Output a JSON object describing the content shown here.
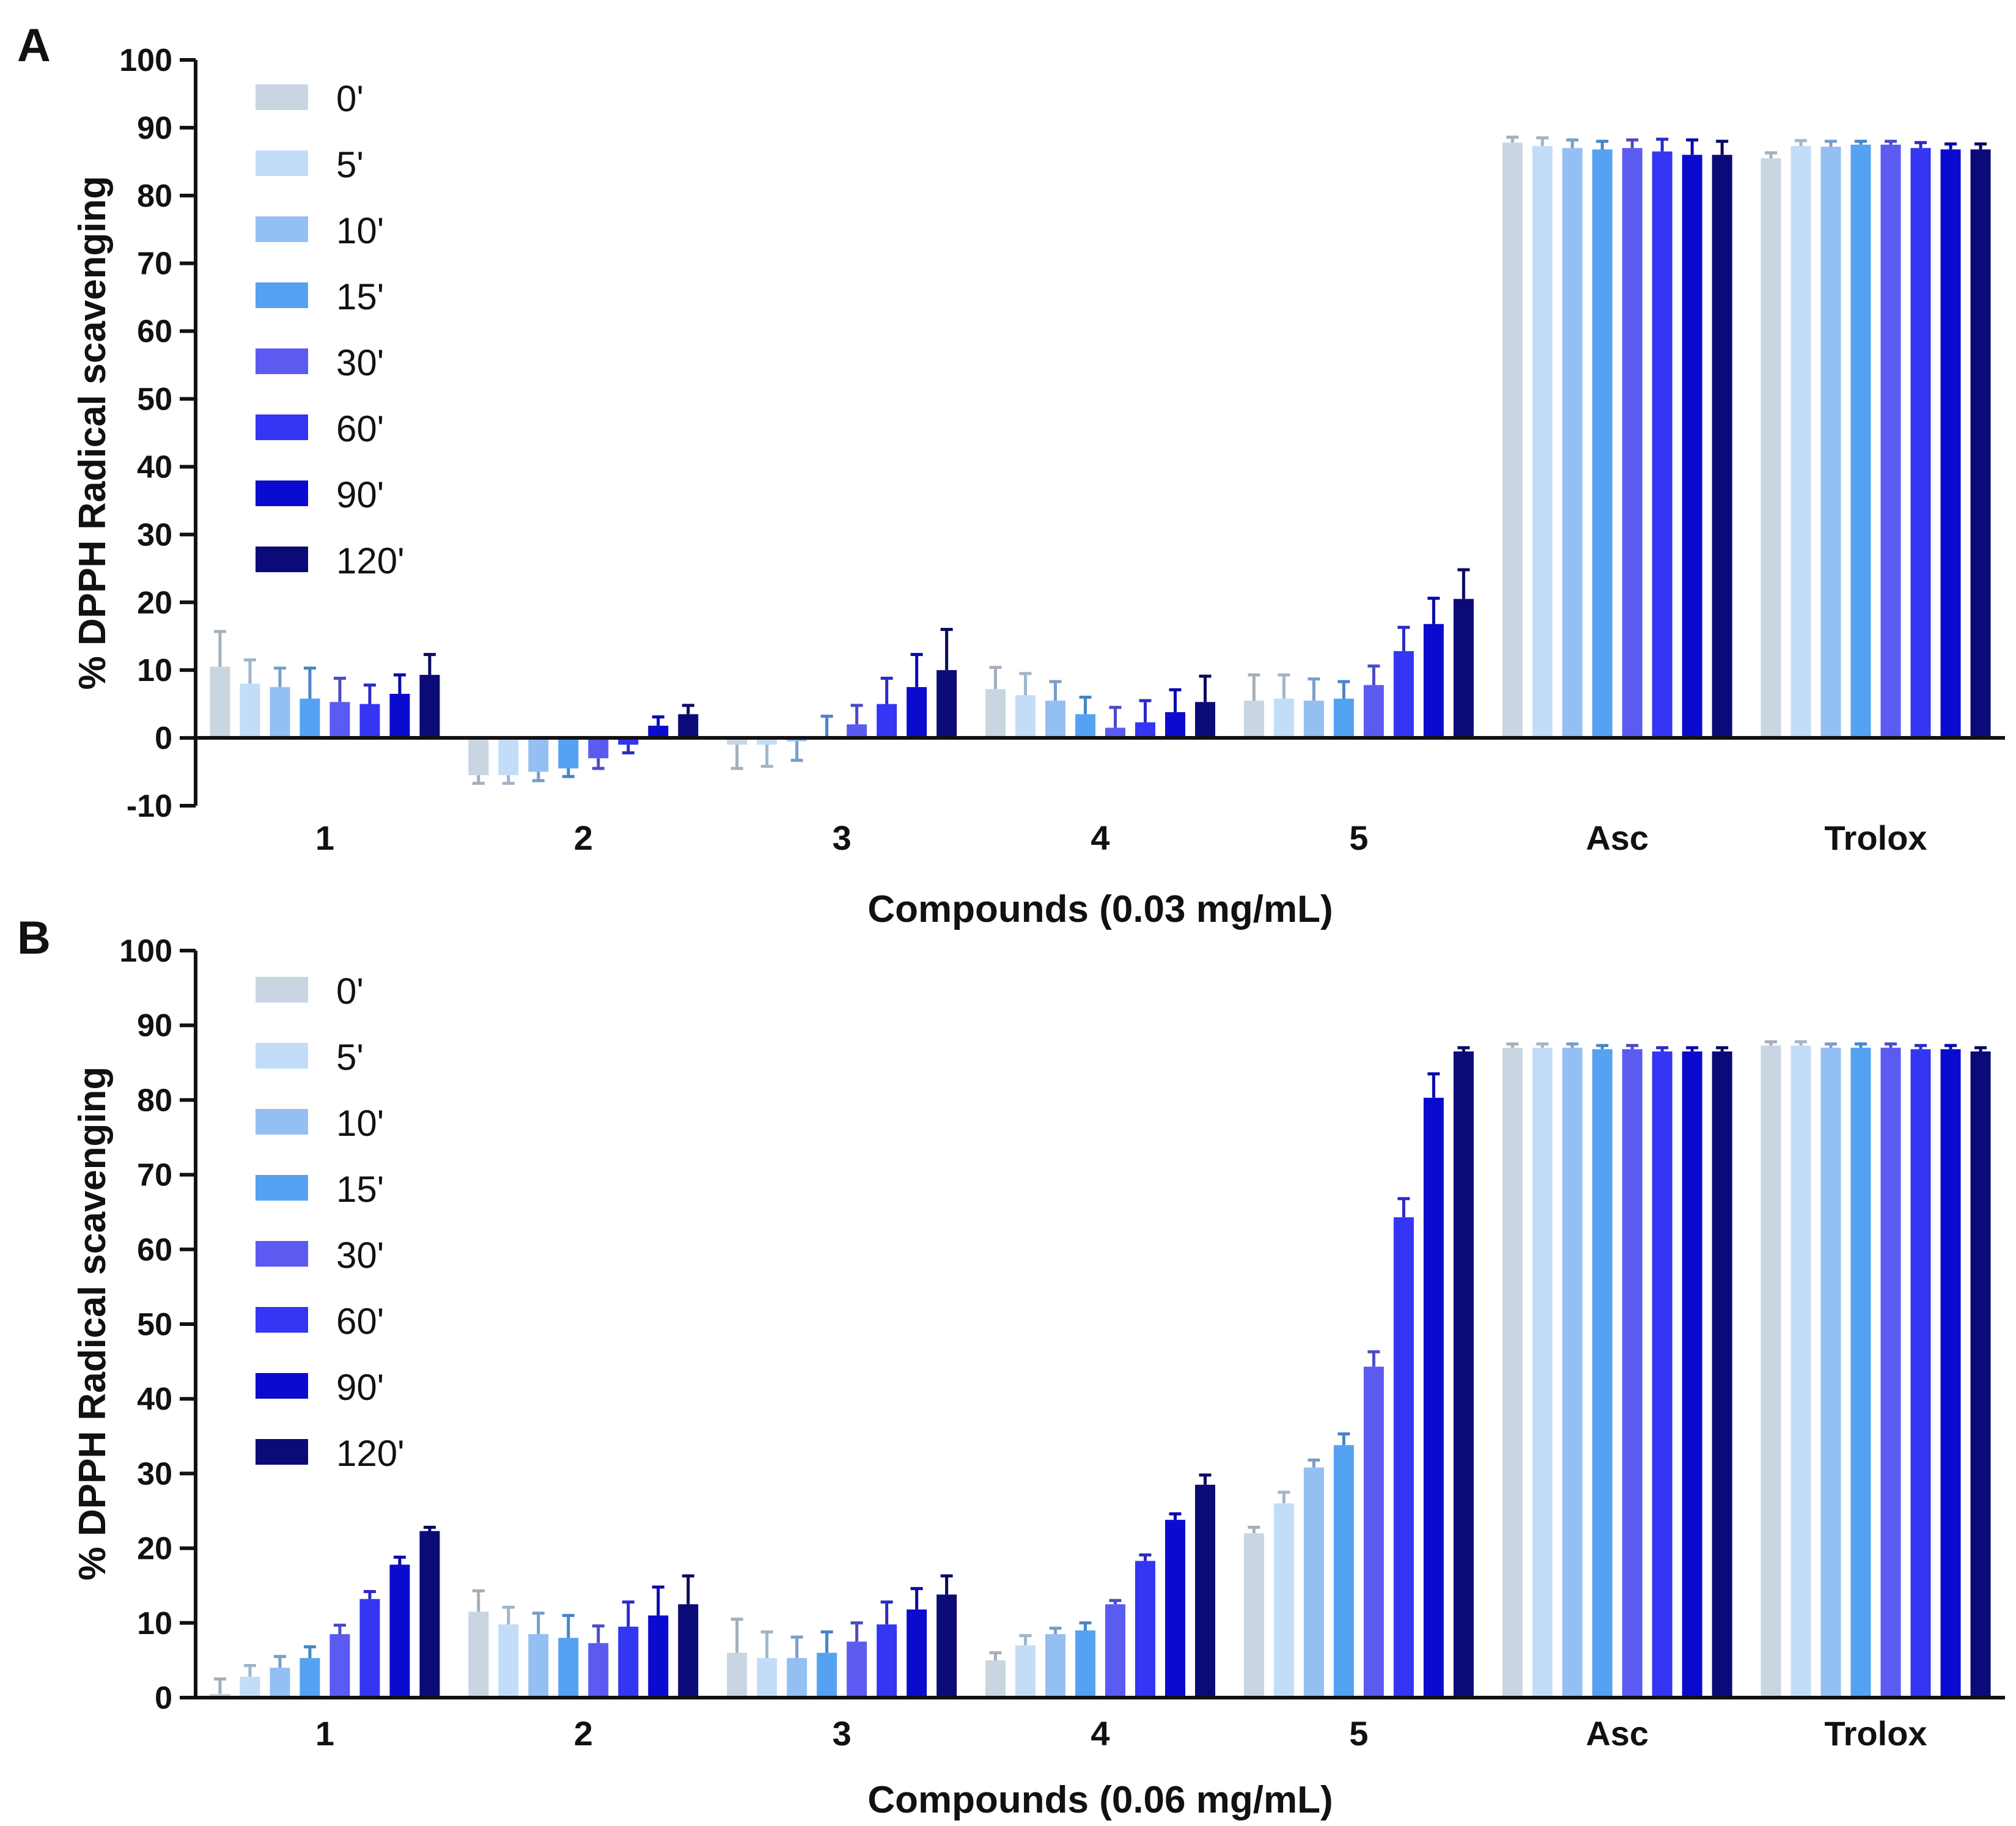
{
  "series_colors": [
    "#c9d6e2",
    "#c3ddf8",
    "#94bff3",
    "#55a2f2",
    "#5b5bf2",
    "#3535f4",
    "#0b0bd0",
    "#0b0b78"
  ],
  "chart_data": [
    {
      "panel": "A",
      "type": "bar",
      "xlabel": "Compounds (0.03 mg/mL)",
      "ylabel": "% DPPH Radical scavenging",
      "ylim": [
        -10,
        100
      ],
      "yticks": [
        "-10",
        "0",
        "10",
        "20",
        "30",
        "40",
        "50",
        "60",
        "70",
        "80",
        "90",
        "100"
      ],
      "grid": false,
      "legend_position": "top-left",
      "categories": [
        "1",
        "2",
        "3",
        "4",
        "5",
        "Asc",
        "Trolox"
      ],
      "series": [
        {
          "name": "0'",
          "values": [
            10.5,
            -5.5,
            -1.0,
            7.2,
            5.5,
            87.8,
            85.5
          ],
          "errors": [
            5.2,
            1.2,
            3.5,
            3.2,
            3.8,
            0.8,
            0.8
          ]
        },
        {
          "name": "5'",
          "values": [
            8.0,
            -5.5,
            -1.0,
            6.3,
            5.8,
            87.3,
            87.3
          ],
          "errors": [
            3.5,
            1.2,
            3.2,
            3.2,
            3.5,
            1.2,
            0.8
          ]
        },
        {
          "name": "10'",
          "values": [
            7.5,
            -5.0,
            -0.5,
            5.5,
            5.5,
            87.0,
            87.2
          ],
          "errors": [
            2.8,
            1.3,
            2.8,
            2.8,
            3.2,
            1.2,
            0.8
          ]
        },
        {
          "name": "15'",
          "values": [
            5.8,
            -4.5,
            0.0,
            3.5,
            5.8,
            86.8,
            87.5
          ],
          "errors": [
            4.5,
            1.2,
            3.2,
            2.5,
            2.5,
            1.2,
            0.5
          ]
        },
        {
          "name": "30'",
          "values": [
            5.3,
            -3.0,
            2.0,
            1.5,
            7.8,
            87.0,
            87.5
          ],
          "errors": [
            3.5,
            1.5,
            2.8,
            3.0,
            2.8,
            1.2,
            0.5
          ]
        },
        {
          "name": "60'",
          "values": [
            5.0,
            -1.0,
            5.0,
            2.3,
            12.8,
            86.5,
            87.0
          ],
          "errors": [
            2.8,
            1.2,
            3.8,
            3.2,
            3.5,
            1.8,
            0.8
          ]
        },
        {
          "name": "90'",
          "values": [
            6.5,
            1.8,
            7.5,
            3.8,
            16.8,
            86.0,
            86.8
          ],
          "errors": [
            2.8,
            1.3,
            4.8,
            3.3,
            3.8,
            2.2,
            0.8
          ]
        },
        {
          "name": "120'",
          "values": [
            9.3,
            3.5,
            10.0,
            5.3,
            20.5,
            86.0,
            86.8
          ],
          "errors": [
            3.0,
            1.3,
            6.0,
            3.8,
            4.3,
            2.0,
            0.8
          ]
        }
      ]
    },
    {
      "panel": "B",
      "type": "bar",
      "xlabel": "Compounds (0.06 mg/mL)",
      "ylabel": "% DPPH Radical scavenging",
      "ylim": [
        0,
        100
      ],
      "yticks": [
        "0",
        "10",
        "20",
        "30",
        "40",
        "50",
        "60",
        "70",
        "80",
        "90",
        "100"
      ],
      "grid": false,
      "legend_position": "top-left",
      "categories": [
        "1",
        "2",
        "3",
        "4",
        "5",
        "Asc",
        "Trolox"
      ],
      "series": [
        {
          "name": "0'",
          "values": [
            0.5,
            11.5,
            6.0,
            5.0,
            22.0,
            87.0,
            87.3
          ],
          "errors": [
            2.0,
            2.8,
            4.5,
            1.0,
            0.8,
            0.5,
            0.5
          ]
        },
        {
          "name": "5'",
          "values": [
            2.8,
            9.8,
            5.3,
            7.0,
            26.0,
            87.0,
            87.3
          ],
          "errors": [
            1.5,
            2.3,
            3.5,
            1.3,
            1.5,
            0.5,
            0.5
          ]
        },
        {
          "name": "10'",
          "values": [
            4.0,
            8.5,
            5.3,
            8.5,
            30.8,
            87.0,
            87.0
          ],
          "errors": [
            1.5,
            2.8,
            2.8,
            0.8,
            1.0,
            0.5,
            0.5
          ]
        },
        {
          "name": "15'",
          "values": [
            5.3,
            8.0,
            6.0,
            9.0,
            33.8,
            86.8,
            87.0
          ],
          "errors": [
            1.5,
            3.0,
            2.8,
            1.0,
            1.5,
            0.5,
            0.5
          ]
        },
        {
          "name": "30'",
          "values": [
            8.5,
            7.3,
            7.5,
            12.5,
            44.3,
            86.8,
            87.0
          ],
          "errors": [
            1.2,
            2.3,
            2.5,
            0.5,
            2.0,
            0.5,
            0.5
          ]
        },
        {
          "name": "60'",
          "values": [
            13.2,
            9.5,
            9.8,
            18.3,
            64.3,
            86.5,
            86.8
          ],
          "errors": [
            1.0,
            3.3,
            3.0,
            0.8,
            2.5,
            0.5,
            0.5
          ]
        },
        {
          "name": "90'",
          "values": [
            17.8,
            11.0,
            11.8,
            23.8,
            80.3,
            86.5,
            86.8
          ],
          "errors": [
            1.0,
            3.8,
            2.8,
            0.8,
            3.2,
            0.5,
            0.5
          ]
        },
        {
          "name": "120'",
          "values": [
            22.3,
            12.5,
            13.8,
            28.5,
            86.5,
            86.5,
            86.5
          ],
          "errors": [
            0.5,
            3.8,
            2.5,
            1.3,
            0.5,
            0.5,
            0.5
          ]
        }
      ]
    }
  ]
}
